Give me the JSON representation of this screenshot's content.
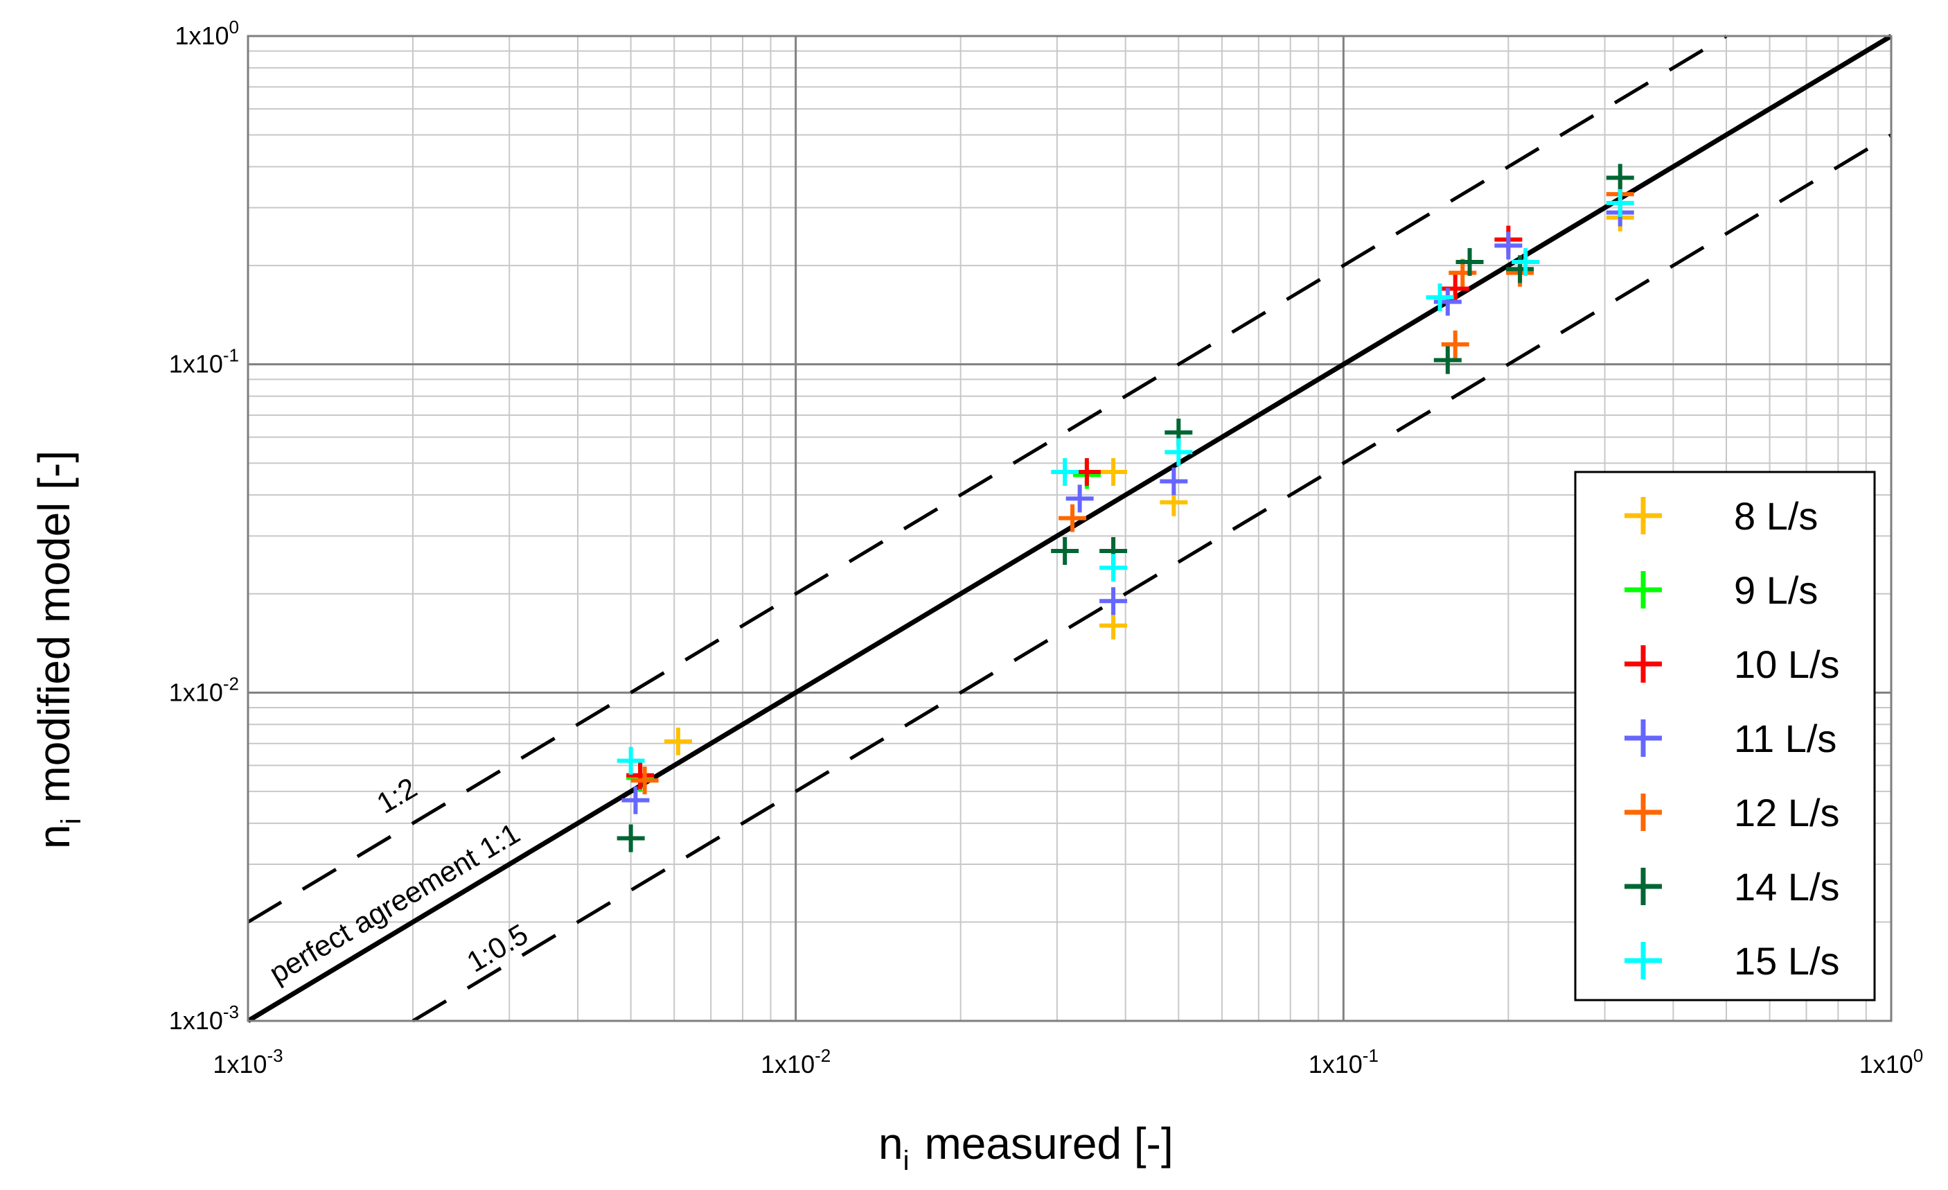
{
  "chart_data": {
    "type": "scatter",
    "xlabel": {
      "main": "n",
      "sub": "i",
      "rest": "measured [-]"
    },
    "ylabel": {
      "main": "n",
      "sub": "i",
      "rest": "modified model [-]"
    },
    "xscale": "log",
    "yscale": "log",
    "xlim": [
      0.001,
      1
    ],
    "ylim": [
      0.001,
      1
    ],
    "grid": true,
    "legend_placement": "bottom-right",
    "x_ticks": [
      {
        "value": 0.001,
        "base": "1x10",
        "exp": "-3"
      },
      {
        "value": 0.01,
        "base": "1x10",
        "exp": "-2"
      },
      {
        "value": 0.1,
        "base": "1x10",
        "exp": "-1"
      },
      {
        "value": 1,
        "base": "1x10",
        "exp": "0"
      }
    ],
    "y_ticks": [
      {
        "value": 0.001,
        "base": "1x10",
        "exp": "-3"
      },
      {
        "value": 0.01,
        "base": "1x10",
        "exp": "-2"
      },
      {
        "value": 0.1,
        "base": "1x10",
        "exp": "-1"
      },
      {
        "value": 1,
        "base": "1x10",
        "exp": "0"
      }
    ],
    "reference_lines": [
      {
        "label": "perfect agreement 1:1",
        "ratio": 1,
        "style": "solid"
      },
      {
        "label": "1:2",
        "ratio": 2,
        "style": "dashed"
      },
      {
        "label": "1:0.5",
        "ratio": 0.5,
        "style": "dashed"
      }
    ],
    "series": [
      {
        "name": "8 L/s",
        "color": "#FFC000",
        "points": [
          [
            0.0061,
            0.0071
          ],
          [
            0.038,
            0.047
          ],
          [
            0.038,
            0.016
          ],
          [
            0.049,
            0.038
          ],
          [
            0.32,
            0.28
          ]
        ]
      },
      {
        "name": "9 L/s",
        "color": "#00FF00",
        "points": [
          [
            0.0052,
            0.0055
          ],
          [
            0.034,
            0.046
          ]
        ]
      },
      {
        "name": "10 L/s",
        "color": "#FF0000",
        "points": [
          [
            0.0052,
            0.0056
          ],
          [
            0.034,
            0.047
          ],
          [
            0.16,
            0.17
          ],
          [
            0.2,
            0.24
          ]
        ]
      },
      {
        "name": "11 L/s",
        "color": "#6666FF",
        "points": [
          [
            0.0051,
            0.0047
          ],
          [
            0.033,
            0.039
          ],
          [
            0.038,
            0.019
          ],
          [
            0.049,
            0.044
          ],
          [
            0.155,
            0.155
          ],
          [
            0.2,
            0.23
          ],
          [
            0.32,
            0.29
          ]
        ]
      },
      {
        "name": "12 L/s",
        "color": "#FF6600",
        "points": [
          [
            0.0053,
            0.0054
          ],
          [
            0.032,
            0.034
          ],
          [
            0.16,
            0.115
          ],
          [
            0.165,
            0.19
          ],
          [
            0.21,
            0.19
          ],
          [
            0.32,
            0.33
          ]
        ]
      },
      {
        "name": "14 L/s",
        "color": "#006633",
        "points": [
          [
            0.005,
            0.0036
          ],
          [
            0.031,
            0.027
          ],
          [
            0.038,
            0.027
          ],
          [
            0.05,
            0.062
          ],
          [
            0.155,
            0.103
          ],
          [
            0.17,
            0.205
          ],
          [
            0.21,
            0.195
          ],
          [
            0.32,
            0.37
          ]
        ]
      },
      {
        "name": "15 L/s",
        "color": "#00FFFF",
        "points": [
          [
            0.005,
            0.0062
          ],
          [
            0.031,
            0.047
          ],
          [
            0.038,
            0.024
          ],
          [
            0.05,
            0.054
          ],
          [
            0.15,
            0.16
          ],
          [
            0.215,
            0.205
          ],
          [
            0.32,
            0.31
          ]
        ]
      }
    ]
  }
}
